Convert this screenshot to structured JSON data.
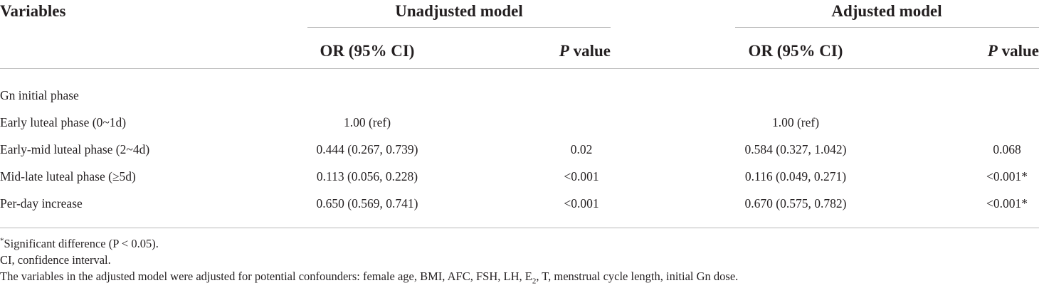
{
  "table": {
    "header": {
      "variables": "Variables",
      "unadjusted_model": "Unadjusted model",
      "adjusted_model": "Adjusted model",
      "or_ci": "OR (95% CI)",
      "p_italic": "P",
      "p_suffix": " value"
    },
    "rows": [
      {
        "label": "Gn initial phase",
        "un_or": "",
        "un_p": "",
        "adj_or": "",
        "adj_p": ""
      },
      {
        "label": "Early luteal phase (0~1d)",
        "un_or": "1.00 (ref)",
        "un_p": "",
        "adj_or": "1.00 (ref)",
        "adj_p": ""
      },
      {
        "label": "Early-mid luteal phase (2~4d)",
        "un_or": "0.444 (0.267, 0.739)",
        "un_p": "0.02",
        "adj_or": "0.584 (0.327, 1.042)",
        "adj_p": "0.068"
      },
      {
        "label": "Mid-late luteal phase (≥5d)",
        "un_or": "0.113 (0.056, 0.228)",
        "un_p": "<0.001",
        "adj_or": "0.116 (0.049, 0.271)",
        "adj_p": "<0.001*"
      },
      {
        "label": "Per-day increase",
        "un_or": "0.650 (0.569, 0.741)",
        "un_p": "<0.001",
        "adj_or": "0.670 (0.575, 0.782)",
        "adj_p": "<0.001*"
      }
    ]
  },
  "footnotes": {
    "sig_mark": "*",
    "sig_text": "Significant difference (P < 0.05).",
    "ci": "CI, confidence interval.",
    "adjusted_before_e": "The variables in the adjusted model were adjusted for potential confounders: female age, BMI, AFC, FSH, LH, E",
    "adjusted_sub": "2",
    "adjusted_after_e": ", T, menstrual cycle length, initial Gn dose."
  }
}
